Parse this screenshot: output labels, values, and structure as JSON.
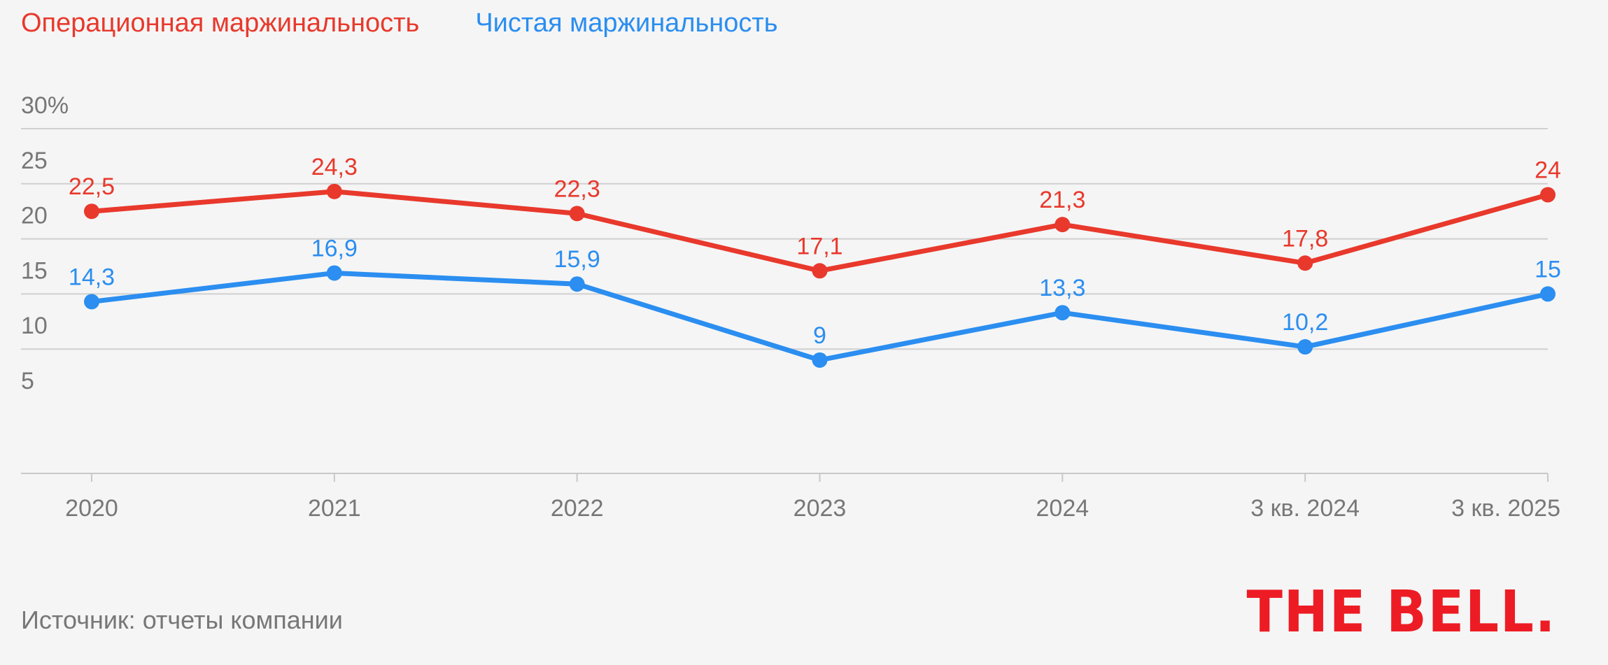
{
  "chart_data": {
    "type": "line",
    "categories": [
      "2020",
      "2021",
      "2022",
      "2023",
      "2024",
      "3 кв. 2024",
      "3 кв. 2025"
    ],
    "ylim": [
      0,
      30
    ],
    "y_ticks": [
      5,
      10,
      15,
      20,
      25,
      30
    ],
    "y_tick_labels": [
      "5",
      "10",
      "15",
      "20",
      "25",
      "30%"
    ],
    "grid": true,
    "legend": "top-left",
    "series": [
      {
        "name": "Операционная маржинальность",
        "color": "#e8392c",
        "values": [
          22.5,
          24.3,
          22.3,
          17.1,
          21.3,
          17.8,
          24
        ],
        "labels": [
          "22,5",
          "24,3",
          "22,3",
          "17,1",
          "21,3",
          "17,8",
          "24"
        ]
      },
      {
        "name": "Чистая маржинальность",
        "color": "#2b8ef0",
        "values": [
          14.3,
          16.9,
          15.9,
          9,
          13.3,
          10.2,
          15
        ],
        "labels": [
          "14,3",
          "16,9",
          "15,9",
          "9",
          "13,3",
          "10,2",
          "15"
        ]
      }
    ]
  },
  "footer": {
    "source": "Источник: отчеты компании",
    "logo": "THE BELL."
  },
  "colors": {
    "grid": "#d0d0d0",
    "axis_text": "#777777",
    "brand": "#ed1c24"
  }
}
